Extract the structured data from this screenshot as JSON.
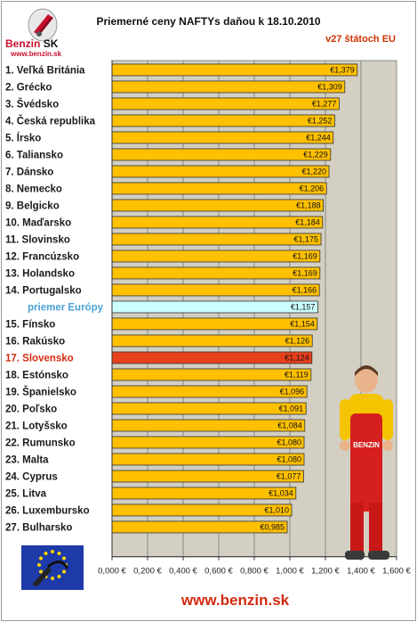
{
  "logo": {
    "brand": "Benzin",
    "brand_suffix": "SK",
    "url": "www.benzin.sk"
  },
  "footer_url": "www.benzin.sk",
  "chart_data": {
    "type": "bar",
    "orientation": "horizontal",
    "title": "Priemerné ceny NAFTYs daňou k 18.10.2010",
    "subtitle": "v27 štátoch EU",
    "categories": [
      "1. Veľká Británia",
      "2. Grécko",
      "3. Švédsko",
      "4. Česká republika",
      "5. Írsko",
      "6. Taliansko",
      "7. Dánsko",
      "8. Nemecko",
      "9. Belgicko",
      "10. Maďarsko",
      "11. Slovinsko",
      "12. Francúzsko",
      "13. Holandsko",
      "14. Portugalsko",
      "priemer Európy",
      "15. Fínsko",
      "16. Rakúsko",
      "17. Slovensko",
      "18. Estónsko",
      "19. Španielsko",
      "20. Poľsko",
      "21. Lotyšsko",
      "22. Rumunsko",
      "23. Malta",
      "24. Cyprus",
      "25. Litva",
      "26. Luxembursko",
      "27. Bulharsko"
    ],
    "values": [
      1.379,
      1.309,
      1.277,
      1.252,
      1.244,
      1.229,
      1.22,
      1.206,
      1.188,
      1.184,
      1.175,
      1.169,
      1.169,
      1.166,
      1.157,
      1.154,
      1.126,
      1.124,
      1.119,
      1.096,
      1.091,
      1.084,
      1.08,
      1.08,
      1.077,
      1.034,
      1.01,
      0.985
    ],
    "value_labels": [
      "€1,379",
      "€1,309",
      "€1,277",
      "€1,252",
      "€1,244",
      "€1,229",
      "€1,220",
      "€1,206",
      "€1,188",
      "€1,184",
      "€1,175",
      "€1,169",
      "€1,169",
      "€1,166",
      "€1,157",
      "€1,154",
      "€1,126",
      "€1,124",
      "€1,119",
      "€1,096",
      "€1,091",
      "€1,084",
      "€1,080",
      "€1,080",
      "€1,077",
      "€1,034",
      "€1,010",
      "€0,985"
    ],
    "highlights": {
      "average_index": 14,
      "slovakia_index": 17
    },
    "xlim": [
      0,
      1.6
    ],
    "x_ticks": [
      "0,000 €",
      "0,200 €",
      "0,400 €",
      "0,600 €",
      "0,800 €",
      "1,000 €",
      "1,200 €",
      "1,400 €",
      "1,600 €"
    ],
    "grid": true,
    "colors": {
      "bar": "#ffc000",
      "average_bar": "#ccffff",
      "slovakia_bar": "#e8401c",
      "plot_background": "#d3cfc2",
      "category_text": "#1a1a1a",
      "average_text": "#4aa3d8",
      "slovakia_text": "#d42a10"
    }
  }
}
